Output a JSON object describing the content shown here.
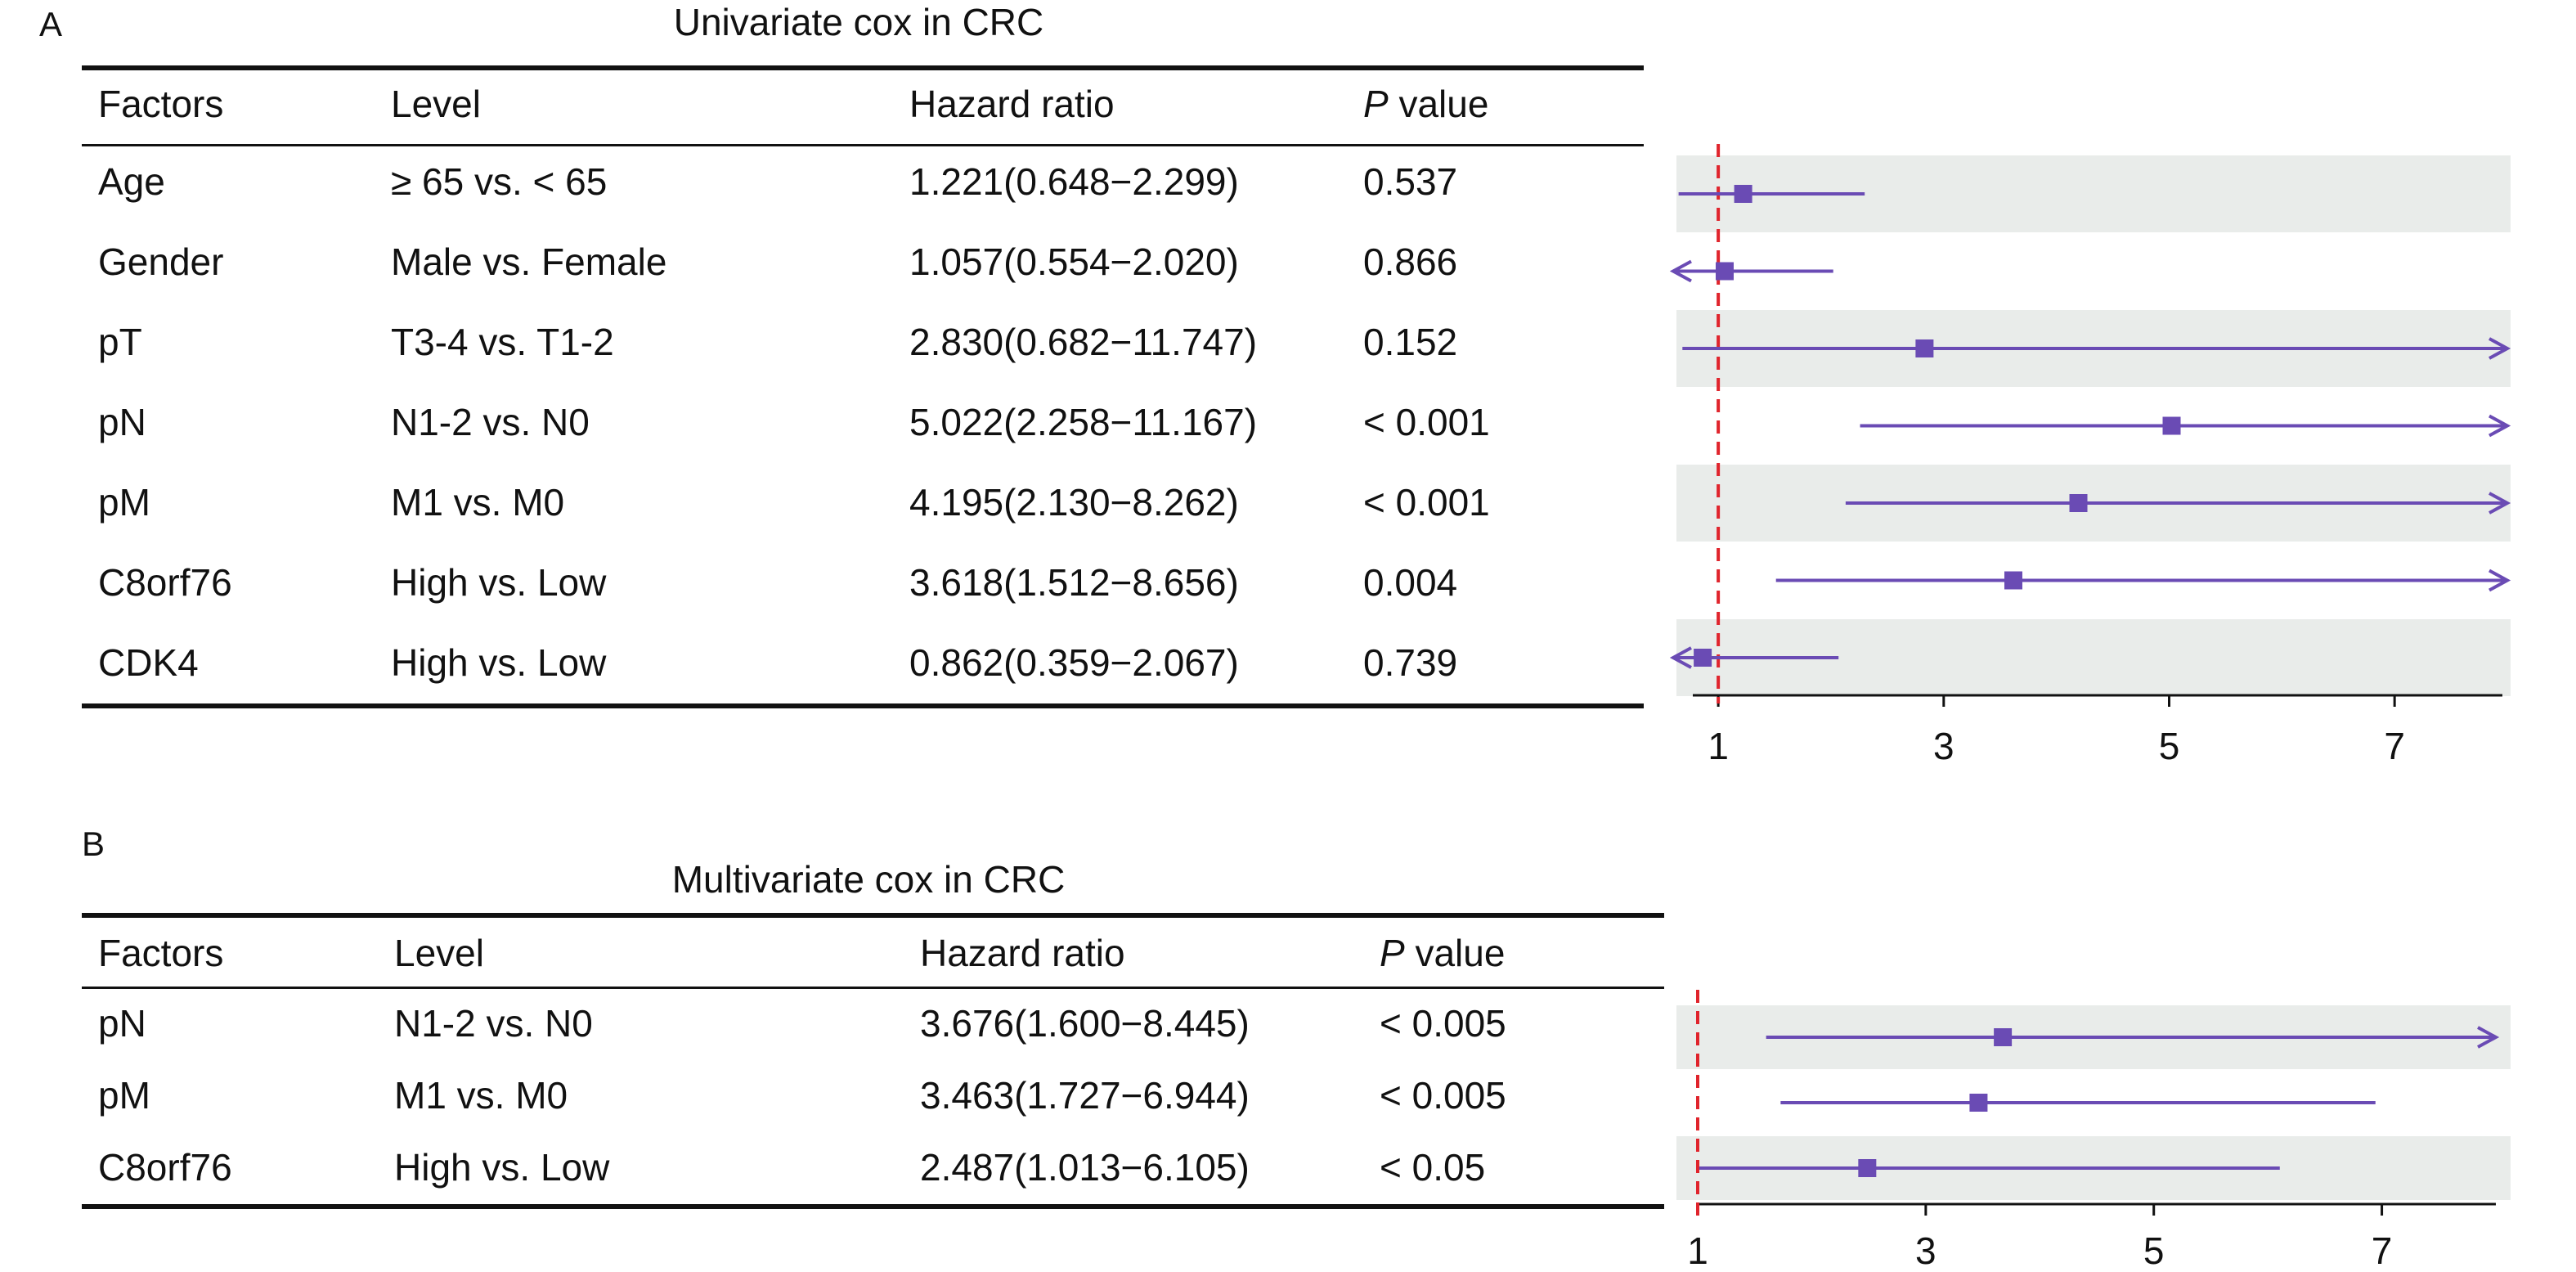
{
  "panels": [
    {
      "letter": "A",
      "title": "Univariate cox in CRC",
      "headers": {
        "factors": "Factors",
        "level": "Level",
        "hazard_ratio": "Hazard ratio",
        "p_italic": "P",
        "p_rest": " value"
      },
      "rows": [
        {
          "factor": "Age",
          "level": "≥ 65 vs. < 65",
          "hr_text": "1.221(0.648−2.299)",
          "p": "0.537",
          "shaded": true
        },
        {
          "factor": "Gender",
          "level": "Male vs. Female",
          "hr_text": "1.057(0.554−2.020)",
          "p": "0.866",
          "shaded": false
        },
        {
          "factor": "pT",
          "level": "T3-4 vs. T1-2",
          "hr_text": "2.830(0.682−11.747)",
          "p": "0.152",
          "shaded": true
        },
        {
          "factor": "pN",
          "level": "N1-2 vs. N0",
          "hr_text": "5.022(2.258−11.167)",
          "p": "< 0.001",
          "shaded": false
        },
        {
          "factor": "pM",
          "level": "M1 vs. M0",
          "hr_text": "4.195(2.130−8.262)",
          "p": "< 0.001",
          "shaded": true
        },
        {
          "factor": "C8orf76",
          "level": "High vs. Low",
          "hr_text": "3.618(1.512−8.656)",
          "p": "0.004",
          "shaded": false
        },
        {
          "factor": "CDK4",
          "level": "High vs. Low",
          "hr_text": "0.862(0.359−2.067)",
          "p": "0.739",
          "shaded": true
        }
      ]
    },
    {
      "letter": "B",
      "title": "Multivariate cox in CRC",
      "headers": {
        "factors": "Factors",
        "level": "Level",
        "hazard_ratio": "Hazard ratio",
        "p_italic": "P",
        "p_rest": " value"
      },
      "rows": [
        {
          "factor": "pN",
          "level": "N1-2 vs. N0",
          "hr_text": "3.676(1.600−8.445)",
          "p": "< 0.005",
          "shaded": true
        },
        {
          "factor": "pM",
          "level": "M1 vs. M0",
          "hr_text": "3.463(1.727−6.944)",
          "p": "< 0.005",
          "shaded": false
        },
        {
          "factor": "C8orf76",
          "level": "High vs. Low",
          "hr_text": "2.487(1.013−6.105)",
          "p": "< 0.05",
          "shaded": true
        }
      ]
    }
  ],
  "chart_data": [
    {
      "type": "forest",
      "title": "Univariate cox in CRC",
      "xlim": [
        0.6,
        8.0
      ],
      "xticks": [
        1,
        3,
        5,
        7
      ],
      "reference_line": 1,
      "colors": {
        "point": "#6a4bb4",
        "reference": "#e0242c",
        "band": "#e9ecea"
      },
      "rows": [
        {
          "label": "Age",
          "hr": 1.221,
          "lo": 0.648,
          "hi": 2.299
        },
        {
          "label": "Gender",
          "hr": 1.057,
          "lo": 0.554,
          "hi": 2.02
        },
        {
          "label": "pT",
          "hr": 2.83,
          "lo": 0.682,
          "hi": 11.747
        },
        {
          "label": "pN",
          "hr": 5.022,
          "lo": 2.258,
          "hi": 11.167
        },
        {
          "label": "pM",
          "hr": 4.195,
          "lo": 2.13,
          "hi": 8.262
        },
        {
          "label": "C8orf76",
          "hr": 3.618,
          "lo": 1.512,
          "hi": 8.656
        },
        {
          "label": "CDK4",
          "hr": 0.862,
          "lo": 0.359,
          "hi": 2.067
        }
      ]
    },
    {
      "type": "forest",
      "title": "Multivariate cox in CRC",
      "xlim": [
        1.0,
        8.0
      ],
      "xticks": [
        1,
        3,
        5,
        7
      ],
      "reference_line": 1,
      "colors": {
        "point": "#6a4bb4",
        "reference": "#e0242c",
        "band": "#e9ecea"
      },
      "rows": [
        {
          "label": "pN",
          "hr": 3.676,
          "lo": 1.6,
          "hi": 8.445
        },
        {
          "label": "pM",
          "hr": 3.463,
          "lo": 1.727,
          "hi": 6.944
        },
        {
          "label": "C8orf76",
          "hr": 2.487,
          "lo": 1.013,
          "hi": 6.105
        }
      ]
    }
  ]
}
